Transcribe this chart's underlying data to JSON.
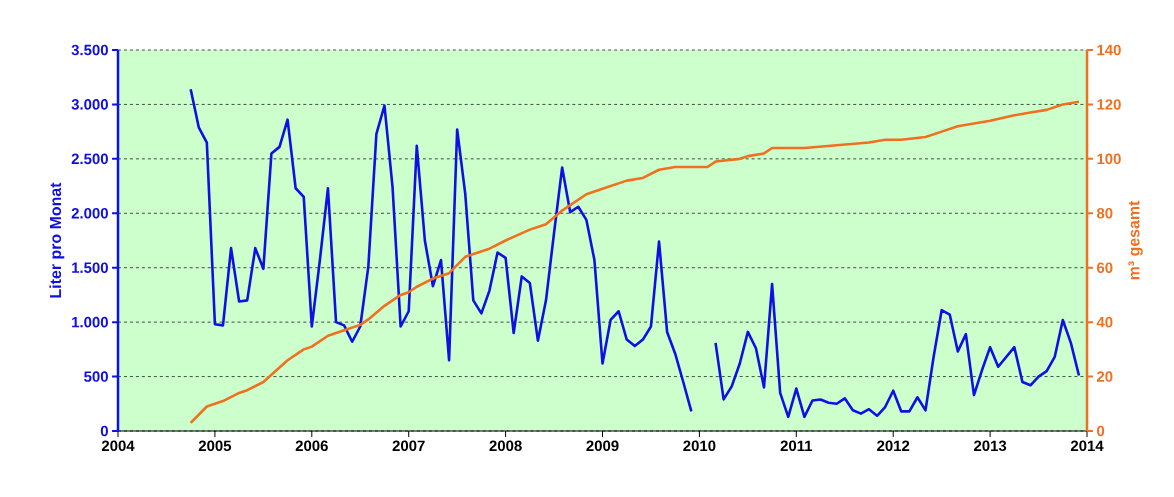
{
  "chart_data": {
    "type": "line",
    "x": [
      "2004-10",
      "2004-11",
      "2004-12",
      "2005-01",
      "2005-02",
      "2005-03",
      "2005-04",
      "2005-05",
      "2005-06",
      "2005-07",
      "2005-08",
      "2005-09",
      "2005-10",
      "2005-11",
      "2005-12",
      "2006-01",
      "2006-02",
      "2006-03",
      "2006-04",
      "2006-05",
      "2006-06",
      "2006-07",
      "2006-08",
      "2006-09",
      "2006-10",
      "2006-11",
      "2006-12",
      "2007-01",
      "2007-02",
      "2007-03",
      "2007-04",
      "2007-05",
      "2007-06",
      "2007-07",
      "2007-08",
      "2007-09",
      "2007-10",
      "2007-11",
      "2007-12",
      "2008-01",
      "2008-02",
      "2008-03",
      "2008-04",
      "2008-05",
      "2008-06",
      "2008-07",
      "2008-08",
      "2008-09",
      "2008-10",
      "2008-11",
      "2008-12",
      "2009-01",
      "2009-02",
      "2009-03",
      "2009-04",
      "2009-05",
      "2009-06",
      "2009-07",
      "2009-08",
      "2009-09",
      "2009-10",
      "2009-11",
      "2009-12",
      "2010-01",
      "2010-02",
      "2010-03",
      "2010-04",
      "2010-05",
      "2010-06",
      "2010-07",
      "2010-08",
      "2010-09",
      "2010-10",
      "2010-11",
      "2010-12",
      "2011-01",
      "2011-02",
      "2011-03",
      "2011-04",
      "2011-05",
      "2011-06",
      "2011-07",
      "2011-08",
      "2011-09",
      "2011-10",
      "2011-11",
      "2011-12",
      "2012-01",
      "2012-02",
      "2012-03",
      "2012-04",
      "2012-05",
      "2012-06",
      "2012-07",
      "2012-08",
      "2012-09",
      "2012-10",
      "2012-11",
      "2012-12",
      "2013-01",
      "2013-02",
      "2013-03",
      "2013-04",
      "2013-05",
      "2013-06",
      "2013-07",
      "2013-08",
      "2013-09",
      "2013-10",
      "2013-11",
      "2013-12"
    ],
    "series": [
      {
        "color": "#0f0fe6",
        "values": [
          3140,
          2790,
          2650,
          980,
          970,
          1680,
          1190,
          1200,
          1680,
          1490,
          2550,
          2610,
          2860,
          2230,
          2150,
          960,
          1570,
          2230,
          1000,
          970,
          820,
          960,
          1510,
          2730,
          2990,
          2240,
          960,
          1100,
          2620,
          1750,
          1330,
          1570,
          650,
          2770,
          2180,
          1200,
          1080,
          1290,
          1640,
          1590,
          900,
          1420,
          1360,
          830,
          1200,
          1820,
          2420,
          2010,
          2060,
          1940,
          1570,
          620,
          1020,
          1100,
          840,
          780,
          840,
          960,
          1740,
          910,
          710,
          450,
          180,
          null,
          null,
          810,
          290,
          410,
          620,
          910,
          760,
          400,
          1350,
          350,
          130,
          390,
          130,
          280,
          290,
          260,
          250,
          300,
          190,
          160,
          200,
          140,
          220,
          370,
          180,
          180,
          310,
          190,
          680,
          1110,
          1070,
          730,
          890,
          330,
          560,
          770,
          590,
          680,
          770,
          450,
          420,
          500,
          550,
          680,
          1020,
          810,
          510
        ]
      },
      {
        "color": "#f07020",
        "axis": "y2",
        "x": [
          "2004-10",
          "2004-12",
          "2005-02",
          "2005-04",
          "2005-05",
          "2005-07",
          "2005-10",
          "2005-12",
          "2006-01",
          "2006-03",
          "2006-05",
          "2006-07",
          "2006-08",
          "2006-10",
          "2006-12",
          "2007-01",
          "2007-02",
          "2007-04",
          "2007-06",
          "2007-08",
          "2007-11",
          "2008-01",
          "2008-04",
          "2008-06",
          "2008-08",
          "2008-11",
          "2009-01",
          "2009-04",
          "2009-06",
          "2009-08",
          "2009-10",
          "2009-12",
          "2010-02",
          "2010-03",
          "2010-06",
          "2010-07",
          "2010-09",
          "2010-10",
          "2011-02",
          "2011-06",
          "2011-10",
          "2011-12",
          "2012-02",
          "2012-05",
          "2012-07",
          "2012-09",
          "2012-11",
          "2013-01",
          "2013-04",
          "2013-06",
          "2013-08",
          "2013-10",
          "2013-12"
        ],
        "values": [
          3,
          9,
          11,
          14,
          15,
          18,
          26,
          30,
          31,
          35,
          37,
          39,
          41,
          46,
          50,
          51,
          53,
          56,
          58,
          64,
          67,
          70,
          74,
          76,
          81,
          87,
          89,
          92,
          93,
          96,
          97,
          97,
          97,
          99,
          100,
          101,
          102,
          104,
          104,
          105,
          106,
          107,
          107,
          108,
          110,
          112,
          113,
          114,
          116,
          117,
          118,
          120,
          121
        ]
      }
    ],
    "xlim": [
      "2004",
      "2014"
    ],
    "xticks": [
      "2004",
      "2005",
      "2006",
      "2007",
      "2008",
      "2009",
      "2010",
      "2011",
      "2012",
      "2013",
      "2014"
    ],
    "ylim": [
      0,
      3500
    ],
    "yticks": [
      {
        "value": 0,
        "label": "0"
      },
      {
        "value": 500,
        "label": "500"
      },
      {
        "value": 1000,
        "label": "1.000"
      },
      {
        "value": 1500,
        "label": "1.500"
      },
      {
        "value": 2000,
        "label": "2.000"
      },
      {
        "value": 2500,
        "label": "2.500"
      },
      {
        "value": 3000,
        "label": "3.000"
      },
      {
        "value": 3500,
        "label": "3.500"
      }
    ],
    "y2lim": [
      0,
      140
    ],
    "y2ticks": [
      0,
      20,
      40,
      60,
      80,
      100,
      120,
      140
    ],
    "ylabel": "Liter pro Monat",
    "y2label": "m³ gesamt",
    "grid": "y",
    "line_style": "solid",
    "marker": "none"
  }
}
